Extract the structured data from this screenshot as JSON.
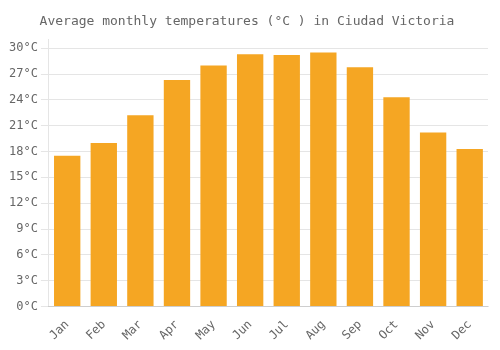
{
  "chart_data": {
    "type": "bar",
    "title": "Average monthly temperatures (°C ) in Ciudad Victoria",
    "categories": [
      "Jan",
      "Feb",
      "Mar",
      "Apr",
      "May",
      "Jun",
      "Jul",
      "Aug",
      "Sep",
      "Oct",
      "Nov",
      "Dec"
    ],
    "values": [
      17.5,
      19.0,
      22.2,
      26.3,
      28.0,
      29.3,
      29.2,
      29.5,
      27.8,
      24.3,
      20.2,
      18.3
    ],
    "color": "#F5A623",
    "ylim": [
      0,
      31
    ],
    "yticks": [
      {
        "value": 0,
        "label": "0°C"
      },
      {
        "value": 3,
        "label": "3°C"
      },
      {
        "value": 6,
        "label": "6°C"
      },
      {
        "value": 9,
        "label": "9°C"
      },
      {
        "value": 12,
        "label": "12°C"
      },
      {
        "value": 15,
        "label": "15°C"
      },
      {
        "value": 18,
        "label": "18°C"
      },
      {
        "value": 21,
        "label": "21°C"
      },
      {
        "value": 24,
        "label": "24°C"
      },
      {
        "value": 27,
        "label": "27°C"
      },
      {
        "value": 30,
        "label": "30°C"
      }
    ],
    "grid": true
  }
}
